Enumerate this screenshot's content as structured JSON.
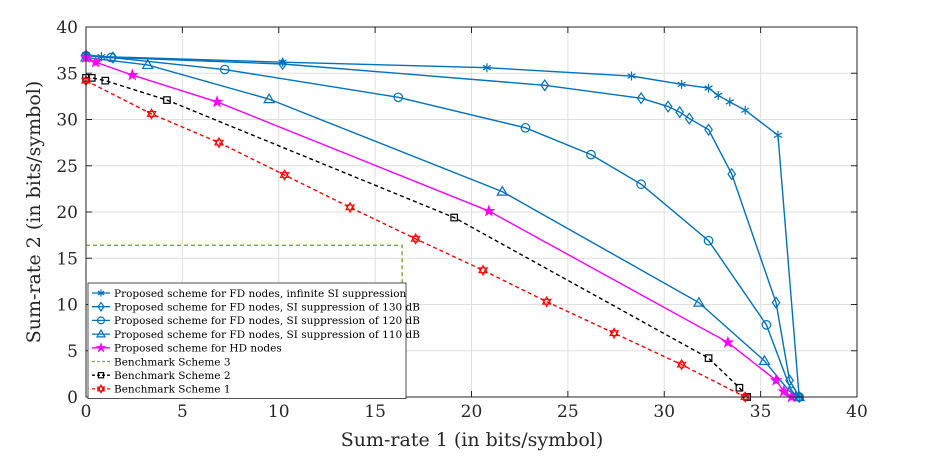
{
  "chart_data": {
    "type": "line",
    "title": "",
    "xlabel": "Sum-rate 1 (in bits/symbol)",
    "ylabel": "Sum-rate 2 (in bits/symbol)",
    "xlim": [
      0,
      40
    ],
    "ylim": [
      0,
      40
    ],
    "xticks": [
      0,
      5,
      10,
      15,
      20,
      25,
      30,
      35,
      40
    ],
    "yticks": [
      0,
      5,
      10,
      15,
      20,
      25,
      30,
      35,
      40
    ],
    "grid": true,
    "legend_position": "bottom-left",
    "series": [
      {
        "name": "Proposed scheme for FD nodes, infinite SI suppression",
        "color": "#0072BD",
        "dash": "solid",
        "marker": "asterisk",
        "x": [
          0,
          0.8,
          10.2,
          20.8,
          28.3,
          30.9,
          32.3,
          32.8,
          33.4,
          34.2,
          35.9,
          37.0
        ],
        "y": [
          37.0,
          36.8,
          36.2,
          35.6,
          34.7,
          33.8,
          33.4,
          32.6,
          31.9,
          31.0,
          28.3,
          0
        ]
      },
      {
        "name": "Proposed scheme for FD nodes, SI suppression of 130 dB",
        "color": "#0072BD",
        "dash": "solid",
        "marker": "diamond",
        "x": [
          0,
          1.4,
          10.2,
          23.8,
          28.8,
          30.2,
          30.8,
          31.3,
          32.3,
          33.5,
          35.8,
          36.5,
          37.0
        ],
        "y": [
          36.9,
          36.7,
          36.0,
          33.7,
          32.3,
          31.4,
          30.8,
          30.1,
          28.9,
          24.1,
          10.2,
          1.8,
          0
        ]
      },
      {
        "name": "Proposed scheme for FD nodes, SI suppression of 120 dB",
        "color": "#0072BD",
        "dash": "solid",
        "marker": "circle",
        "x": [
          0,
          1.3,
          7.2,
          16.2,
          22.8,
          26.2,
          28.8,
          32.3,
          35.3,
          36.6,
          37.0
        ],
        "y": [
          36.9,
          36.7,
          35.4,
          32.4,
          29.1,
          26.2,
          23.0,
          16.9,
          7.8,
          0.6,
          0
        ]
      },
      {
        "name": "Proposed scheme for FD nodes, SI suppression of 110 dB",
        "color": "#0072BD",
        "dash": "solid",
        "marker": "triangle",
        "x": [
          0,
          3.2,
          9.5,
          21.6,
          31.8,
          35.2,
          36.5,
          37.0
        ],
        "y": [
          36.7,
          35.9,
          32.2,
          22.2,
          10.2,
          3.9,
          0.6,
          0
        ]
      },
      {
        "name": "Proposed scheme for HD nodes",
        "color": "#FF00FF",
        "dash": "solid",
        "marker": "star",
        "x": [
          0,
          0.5,
          2.4,
          6.8,
          20.9,
          33.3,
          35.8,
          36.2,
          36.6
        ],
        "y": [
          36.7,
          36.2,
          34.8,
          31.9,
          20.1,
          5.9,
          1.8,
          0.6,
          0
        ]
      },
      {
        "name": "Benchmark Scheme 3",
        "color": "#77AC30",
        "dash": "dashed",
        "marker": "none",
        "x": [
          0,
          16.4,
          16.4
        ],
        "y": [
          16.4,
          16.4,
          0
        ]
      },
      {
        "name": "Benchmark Scheme 2",
        "color": "#000000",
        "dash": "dashed",
        "marker": "square",
        "x": [
          0,
          0.3,
          1.0,
          4.2,
          19.1,
          32.3,
          33.9,
          34.3
        ],
        "y": [
          34.5,
          34.5,
          34.2,
          32.1,
          19.4,
          4.2,
          1.0,
          0
        ]
      },
      {
        "name": "Benchmark Scheme 1",
        "color": "#FF0000",
        "dash": "dashed",
        "marker": "hexagram",
        "x": [
          0,
          3.4,
          6.9,
          10.3,
          13.7,
          17.1,
          20.6,
          23.9,
          27.4,
          30.9,
          34.2
        ],
        "y": [
          34.2,
          30.6,
          27.5,
          24.0,
          20.5,
          17.1,
          13.7,
          10.3,
          6.9,
          3.5,
          0
        ]
      }
    ]
  }
}
